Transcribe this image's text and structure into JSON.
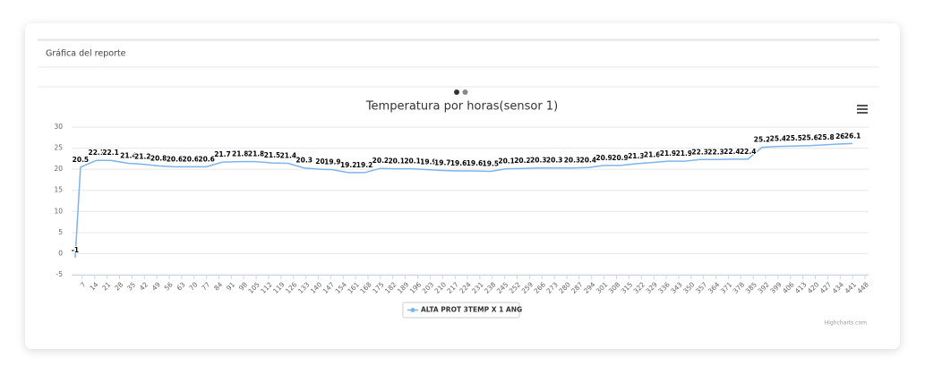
{
  "header_title": "Gráfica del reporte",
  "chart_data": {
    "type": "line",
    "title": "Temperatura por horas(sensor 1)",
    "x": [
      3,
      6,
      15,
      23,
      33,
      41,
      50,
      59,
      68,
      77,
      86,
      96,
      105,
      114,
      123,
      132,
      141,
      148,
      157,
      166,
      175,
      184,
      193,
      202,
      210,
      219,
      228,
      237,
      246,
      255,
      264,
      273,
      283,
      292,
      301,
      310,
      319,
      328,
      337,
      346,
      355,
      364,
      373,
      382,
      390,
      399,
      408,
      417,
      426,
      434,
      441
    ],
    "series": [
      {
        "name": "ALTA PROT 3TEMP X 1 ANG",
        "color": "#7cb5ec",
        "values": [
          -1,
          20.5,
          22.1,
          22.1,
          21.4,
          21.2,
          20.8,
          20.6,
          20.6,
          20.6,
          21.7,
          21.8,
          21.8,
          21.5,
          21.4,
          20.3,
          20,
          19.9,
          19.2,
          19.2,
          20.2,
          20.1,
          20.1,
          19.9,
          19.7,
          19.6,
          19.6,
          19.5,
          20.1,
          20.2,
          20.3,
          20.3,
          20.3,
          20.4,
          20.9,
          20.9,
          21.3,
          21.6,
          21.9,
          21.9,
          22.3,
          22.3,
          22.4,
          22.4,
          25.2,
          25.4,
          25.5,
          25.6,
          25.8,
          26,
          26.1
        ]
      }
    ],
    "xlim": [
      1,
      450
    ],
    "xticks": [
      7,
      14,
      21,
      28,
      35,
      42,
      49,
      56,
      63,
      70,
      77,
      84,
      91,
      98,
      105,
      112,
      119,
      126,
      133,
      140,
      147,
      154,
      161,
      168,
      175,
      182,
      189,
      196,
      203,
      210,
      217,
      224,
      231,
      238,
      245,
      252,
      259,
      266,
      273,
      280,
      287,
      294,
      301,
      308,
      315,
      322,
      329,
      336,
      343,
      350,
      357,
      364,
      371,
      378,
      385,
      392,
      399,
      406,
      413,
      420,
      427,
      434,
      441,
      448
    ],
    "ylim": [
      -5,
      30
    ],
    "yticks": [
      -5,
      0,
      5,
      10,
      15,
      20,
      25,
      30
    ],
    "grid": true,
    "credits": "Highcharts.com"
  }
}
